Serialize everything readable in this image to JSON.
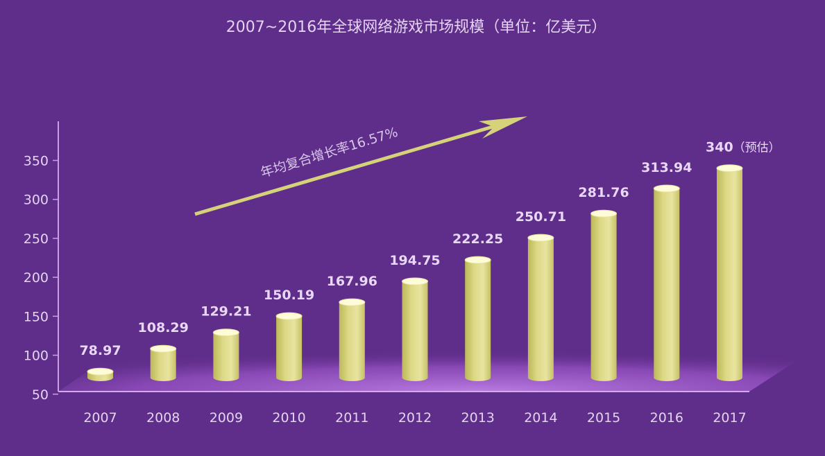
{
  "chart_data": {
    "type": "bar",
    "title": "2007~2016年全球网络游戏市场规模（单位：亿美元）",
    "categories": [
      "2007",
      "2008",
      "2009",
      "2010",
      "2011",
      "2012",
      "2013",
      "2014",
      "2015",
      "2016",
      "2017"
    ],
    "values": [
      78.97,
      108.29,
      129.21,
      150.19,
      167.96,
      194.75,
      222.25,
      250.71,
      281.76,
      313.94,
      340
    ],
    "value_labels": [
      "78.97",
      "108.29",
      "129.21",
      "150.19",
      "167.96",
      "194.75",
      "222.25",
      "250.71",
      "281.76",
      "313.94",
      "340"
    ],
    "last_value_note": "（预估）",
    "y_ticks": [
      50,
      100,
      150,
      200,
      250,
      300,
      350
    ],
    "ylim": [
      0,
      350
    ],
    "annotation": "年均复合增长率16.57%",
    "colors": {
      "background": "#5f2d8a",
      "bar": "#d8d479",
      "bar_top": "#fdfbd8",
      "floor": "#c27ae8",
      "arrow": "#d6d27a",
      "text": "#e4d4f2"
    }
  }
}
